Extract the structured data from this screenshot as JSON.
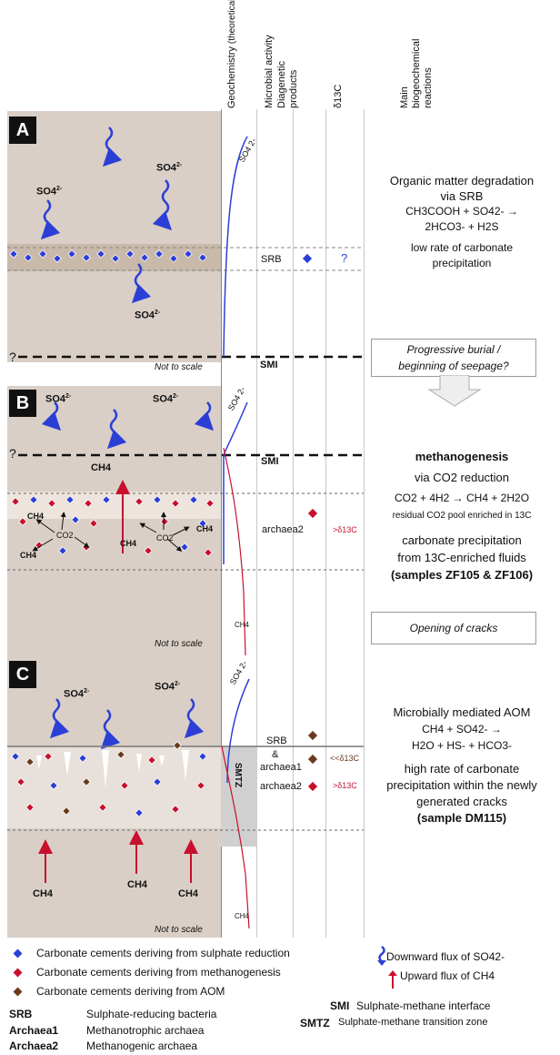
{
  "columns": {
    "geochem": "Geochemistry",
    "geochem_sub": "(theoretical)",
    "microbial": "Microbial activity",
    "diagenetic_1": "Diagenetic",
    "diagenetic_2": "products",
    "d13c": "δ13C",
    "reactions_1": "Main",
    "reactions_2": "biogeochemical",
    "reactions_3": "reactions"
  },
  "panelA": {
    "letter": "A",
    "ion": "SO4",
    "ion_sup": "2-",
    "microbe": "SRB",
    "d13c": "?",
    "smi": "SMI",
    "question": "?",
    "not_to_scale": "Not to scale",
    "curve_label": "SO4 2-",
    "rx_line1": "Organic matter degradation",
    "rx_line2": "via SRB",
    "rx_line3": "CH3COOH + SO42- →",
    "rx_line4": "2HCO3- + H2S",
    "rx_line5": "low rate of carbonate",
    "rx_line6": "precipitation"
  },
  "transitionAB": {
    "line1": "Progressive burial /",
    "line2": "beginning of seepage?"
  },
  "panelB": {
    "letter": "B",
    "ion": "SO4",
    "ion_sup": "2-",
    "ch4": "CH4",
    "co2": "CO2",
    "smi": "SMI",
    "question": "?",
    "microbe": "archaea2",
    "d13c": ">δ13C",
    "curve_so4": "SO4 2-",
    "curve_ch4": "CH4",
    "not_to_scale": "Not to scale",
    "rx_title": "methanogenesis",
    "rx_line1": "via CO2 reduction",
    "rx_line2": "CO2 + 4H2 → CH4 + 2H2O",
    "rx_line3": "residual CO2 pool enriched in 13C",
    "rx_line4": "carbonate precipitation",
    "rx_line5": "from 13C-enriched fluids",
    "rx_line6": "(samples ZF105 & ZF106)"
  },
  "transitionBC": {
    "line1": "Opening of cracks"
  },
  "panelC": {
    "letter": "C",
    "ion": "SO4",
    "ion_sup": "2-",
    "ch4": "CH4",
    "smtz": "SMTZ",
    "microbe1": "SRB",
    "microbe2": "&",
    "microbe3": "archaea1",
    "microbe4": "archaea2",
    "d13c_1": "<<δ13C",
    "d13c_2": ">δ13C",
    "curve_so4": "SO4 2-",
    "curve_ch4": "CH4",
    "not_to_scale": "Not to scale",
    "rx_line1": "Microbially mediated AOM",
    "rx_line2": "CH4 + SO42- →",
    "rx_line3": "H2O + HS- + HCO3-",
    "rx_line4": "high rate of carbonate",
    "rx_line5": "precipitation within the newly",
    "rx_line6": "generated cracks",
    "rx_line7": "(sample DM115)"
  },
  "legend": {
    "blue": "Carbonate cements deriving from sulphate reduction",
    "red": "Carbonate cements deriving from methanogenesis",
    "brown": "Carbonate cements deriving from AOM",
    "down_flux": "Downward flux of SO42-",
    "up_flux": "Upward flux of CH4",
    "srb_k": "SRB",
    "srb_v": "Sulphate-reducing bacteria",
    "a1_k": "Archaea1",
    "a1_v": "Methanotrophic archaea",
    "a2_k": "Archaea2",
    "a2_v": "Methanogenic archaea",
    "smi_k": "SMI",
    "smi_v": "Sulphate-methane interface",
    "smtz_k": "SMTZ",
    "smtz_v": "Sulphate-methane transition zone"
  },
  "colors": {
    "blue": "#2b3fd6",
    "red": "#c8102e",
    "brown": "#6b3a1e",
    "sediment": "#d9cfc7"
  }
}
